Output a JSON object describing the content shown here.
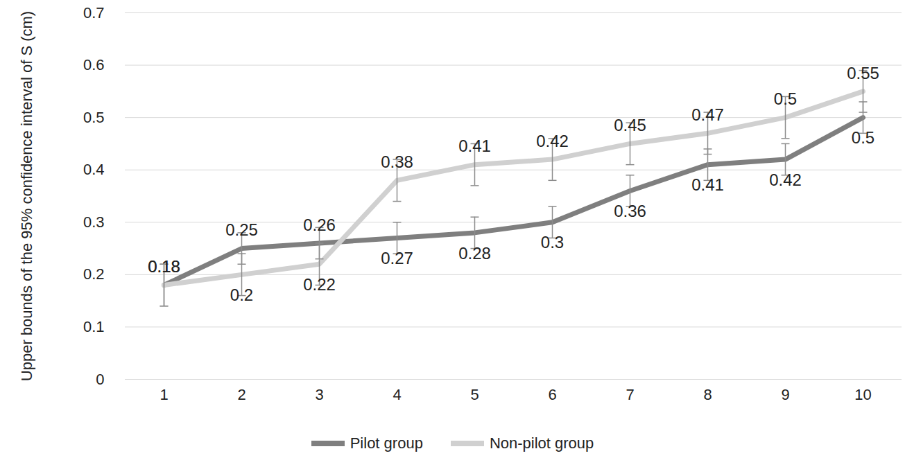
{
  "chart_data": {
    "type": "line",
    "ylabel": "Upper bounds of the 95% confidence interval of S (cm)",
    "categories": [
      1,
      2,
      3,
      4,
      5,
      6,
      7,
      8,
      9,
      10
    ],
    "series": [
      {
        "name": "Pilot group",
        "color": "#7f7f7f",
        "values": [
          0.18,
          0.25,
          0.26,
          0.27,
          0.28,
          0.3,
          0.36,
          0.41,
          0.42,
          0.5
        ],
        "errors": [
          0.04,
          0.03,
          0.03,
          0.03,
          0.03,
          0.03,
          0.03,
          0.03,
          0.03,
          0.03
        ]
      },
      {
        "name": "Non-pilot group",
        "color": "#d0d0d0",
        "values": [
          0.18,
          0.2,
          0.22,
          0.38,
          0.41,
          0.42,
          0.45,
          0.47,
          0.5,
          0.55
        ],
        "errors": [
          0.04,
          0.04,
          0.04,
          0.04,
          0.04,
          0.04,
          0.04,
          0.04,
          0.04,
          0.04
        ]
      }
    ],
    "ylim": [
      0,
      0.7
    ],
    "yticks": [
      0,
      0.1,
      0.2,
      0.3,
      0.4,
      0.5,
      0.6,
      0.7
    ],
    "grid": true,
    "data_labels": true,
    "legend": "bottom"
  }
}
